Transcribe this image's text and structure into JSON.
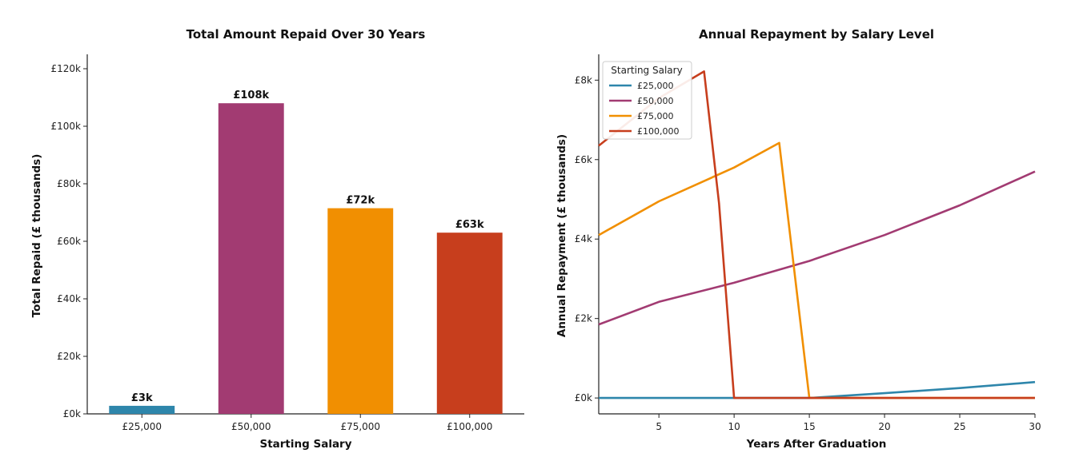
{
  "colors": {
    "c25k": "#2e86ab",
    "c50k": "#a23b72",
    "c75k": "#f18f01",
    "c100k": "#c73e1d"
  },
  "chart_data": [
    {
      "type": "bar",
      "title": "Total Amount Repaid Over 30 Years",
      "xlabel": "Starting Salary",
      "ylabel": "Total Repaid (£ thousands)",
      "categories": [
        "£25,000",
        "£50,000",
        "£75,000",
        "£100,000"
      ],
      "values": [
        2.8,
        108,
        71.5,
        63
      ],
      "data_labels": [
        "£3k",
        "£108k",
        "£72k",
        "£63k"
      ],
      "ylim": [
        0,
        125
      ],
      "yticks": [
        0,
        20,
        40,
        60,
        80,
        100,
        120
      ],
      "ytick_labels": [
        "£0k",
        "£20k",
        "£40k",
        "£60k",
        "£80k",
        "£100k",
        "£120k"
      ],
      "grid": false
    },
    {
      "type": "line",
      "title": "Annual Repayment by Salary Level",
      "xlabel": "Years After Graduation",
      "ylabel": "Annual Repayment (£ thousands)",
      "xlim": [
        1,
        30
      ],
      "ylim": [
        -0.4,
        8.65
      ],
      "xticks": [
        5,
        10,
        15,
        20,
        25,
        30
      ],
      "xtick_labels": [
        "5",
        "10",
        "15",
        "20",
        "25",
        "30"
      ],
      "yticks": [
        0,
        2,
        4,
        6,
        8
      ],
      "ytick_labels": [
        "£0k",
        "£2k",
        "£4k",
        "£6k",
        "£8k"
      ],
      "legend_title": "Starting Salary",
      "legend_position": "top-left",
      "grid": false,
      "series": [
        {
          "name": "£25,000",
          "x": [
            1,
            5,
            10,
            15,
            20,
            25,
            30
          ],
          "y": [
            0,
            0,
            0,
            0,
            0.12,
            0.25,
            0.4
          ]
        },
        {
          "name": "£50,000",
          "x": [
            1,
            5,
            10,
            15,
            20,
            25,
            30
          ],
          "y": [
            1.85,
            2.42,
            2.9,
            3.45,
            4.1,
            4.85,
            5.7
          ]
        },
        {
          "name": "£75,000",
          "x": [
            1,
            5,
            10,
            13,
            15,
            20,
            25,
            30
          ],
          "y": [
            4.1,
            4.95,
            5.8,
            6.42,
            0,
            0,
            0,
            0
          ]
        },
        {
          "name": "£100,000",
          "x": [
            1,
            5,
            8,
            9,
            10,
            15,
            20,
            25,
            30
          ],
          "y": [
            6.35,
            7.55,
            8.22,
            4.9,
            0,
            0,
            0,
            0,
            0
          ]
        }
      ]
    }
  ]
}
